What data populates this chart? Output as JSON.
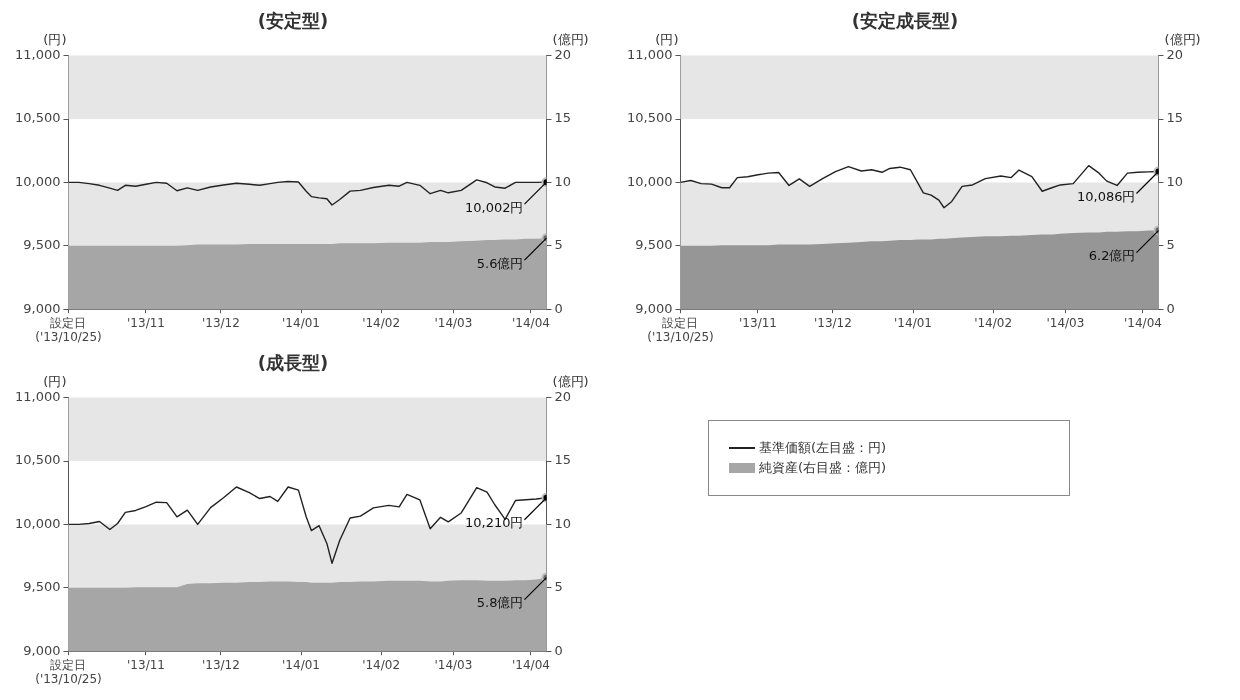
{
  "chart_data": [
    {
      "type": "line",
      "title": "(安定型)",
      "ylabel": "(円)",
      "y2label": "(億円)",
      "x": [
        "2013-10-25",
        "2013-10-29",
        "2013-11-02",
        "2013-11-06",
        "2013-11-10",
        "2013-11-13",
        "2013-11-16",
        "2013-11-20",
        "2013-11-24",
        "2013-11-28",
        "2013-12-02",
        "2013-12-06",
        "2013-12-10",
        "2013-12-14",
        "2013-12-19",
        "2013-12-24",
        "2013-12-29",
        "2014-01-03",
        "2014-01-07",
        "2014-01-11",
        "2014-01-14",
        "2014-01-18",
        "2014-01-22",
        "2014-01-25",
        "2014-01-27",
        "2014-01-30",
        "2014-02-02",
        "2014-02-04",
        "2014-02-07",
        "2014-02-11",
        "2014-02-15",
        "2014-02-20",
        "2014-02-26",
        "2014-03-02",
        "2014-03-05",
        "2014-03-10",
        "2014-03-14",
        "2014-03-18",
        "2014-03-21",
        "2014-03-26",
        "2014-04-01",
        "2014-04-05",
        "2014-04-08",
        "2014-04-12",
        "2014-04-16",
        "2014-04-20",
        "2014-04-24",
        "2014-04-28"
      ],
      "series": [
        {
          "type": "line",
          "color": "#222222",
          "values": [
            10000,
            10000,
            9990,
            9977,
            9955,
            9937,
            9977,
            9970,
            9985,
            10000,
            9993,
            9934,
            9957,
            9937,
            9964,
            9980,
            9993,
            9985,
            9977,
            9990,
            10000,
            10007,
            10003,
            9930,
            9888,
            9878,
            9871,
            9822,
            9865,
            9931,
            9937,
            9960,
            9977,
            9970,
            10000,
            9977,
            9911,
            9937,
            9918,
            9937,
            10020,
            9997,
            9964,
            9954,
            10000,
            10000,
            10000,
            10002
          ]
        },
        {
          "type": "area",
          "axis": "y2",
          "color": "#a6a6a6",
          "values": [
            5.0,
            5.0,
            5.0,
            5.0,
            5.0,
            5.0,
            5.0,
            5.0,
            5.0,
            5.0,
            5.0,
            5.0,
            5.05,
            5.1,
            5.1,
            5.1,
            5.1,
            5.15,
            5.15,
            5.15,
            5.15,
            5.15,
            5.15,
            5.15,
            5.15,
            5.15,
            5.15,
            5.15,
            5.2,
            5.2,
            5.2,
            5.2,
            5.25,
            5.25,
            5.25,
            5.25,
            5.3,
            5.3,
            5.3,
            5.35,
            5.4,
            5.45,
            5.45,
            5.5,
            5.5,
            5.55,
            5.55,
            5.6
          ]
        }
      ],
      "annotations": [
        {
          "text": "10,002円",
          "x": "2014-04-28",
          "y": 10002
        },
        {
          "text": "5.6億円",
          "x": "2014-04-28",
          "y": 9560
        }
      ],
      "bands": [
        {
          "axis": "y",
          "from": 10500,
          "to": 11000,
          "color": "#e6e6e6"
        },
        {
          "axis": "y",
          "from": 9000,
          "to": 10000,
          "color": "#e6e6e6"
        }
      ],
      "xlim": [
        "2013-10-25",
        "2014-04-28"
      ],
      "xticks": [
        {
          "value": "2013-10-25",
          "label": "設定日\n('13/10/25)"
        },
        {
          "value": "2013-11-24",
          "label": "'13/11"
        },
        {
          "value": "2013-12-23",
          "label": "'13/12"
        },
        {
          "value": "2014-01-23",
          "label": "'14/01"
        },
        {
          "value": "2014-02-23",
          "label": "'14/02"
        },
        {
          "value": "2014-03-23",
          "label": "'14/03"
        },
        {
          "value": "2014-04-22",
          "label": "'14/04"
        }
      ],
      "ylim": [
        9000,
        11000
      ],
      "yticks": [
        {
          "value": 9000,
          "label": "9,000"
        },
        {
          "value": 9500,
          "label": "9,500"
        },
        {
          "value": 10000,
          "label": "10,000"
        },
        {
          "value": 10500,
          "label": "10,500"
        },
        {
          "value": 11000,
          "label": "11,000"
        }
      ],
      "y2lim": [
        0,
        20
      ],
      "y2ticks": [
        0,
        5,
        10,
        15,
        20
      ],
      "grid": false,
      "legend": false
    },
    {
      "type": "line",
      "title": "(安定成長型)",
      "ylabel": "(円)",
      "y2label": "(億円)",
      "x": [
        "2013-10-25",
        "2013-10-29",
        "2013-11-02",
        "2013-11-06",
        "2013-11-10",
        "2013-11-13",
        "2013-11-16",
        "2013-11-20",
        "2013-11-24",
        "2013-11-28",
        "2013-12-02",
        "2013-12-06",
        "2013-12-10",
        "2013-12-14",
        "2013-12-19",
        "2013-12-24",
        "2013-12-29",
        "2014-01-03",
        "2014-01-07",
        "2014-01-11",
        "2014-01-14",
        "2014-01-18",
        "2014-01-22",
        "2014-01-25",
        "2014-01-27",
        "2014-01-30",
        "2014-02-02",
        "2014-02-04",
        "2014-02-07",
        "2014-02-11",
        "2014-02-15",
        "2014-02-20",
        "2014-02-26",
        "2014-03-02",
        "2014-03-05",
        "2014-03-10",
        "2014-03-14",
        "2014-03-18",
        "2014-03-21",
        "2014-03-26",
        "2014-04-01",
        "2014-04-05",
        "2014-04-08",
        "2014-04-12",
        "2014-04-16",
        "2014-04-20",
        "2014-04-24",
        "2014-04-28"
      ],
      "series": [
        {
          "type": "line",
          "color": "#222222",
          "values": [
            10000,
            10015,
            9990,
            9986,
            9958,
            9958,
            10038,
            10045,
            10060,
            10073,
            10078,
            9976,
            10028,
            9969,
            10030,
            10085,
            10125,
            10090,
            10100,
            10080,
            10110,
            10120,
            10100,
            9990,
            9917,
            9900,
            9860,
            9800,
            9850,
            9969,
            9980,
            10030,
            10050,
            10038,
            10097,
            10045,
            9930,
            9960,
            9980,
            9990,
            10132,
            10073,
            10010,
            9976,
            10073,
            10080,
            10083,
            10086
          ]
        },
        {
          "type": "area",
          "axis": "y2",
          "color": "#969696",
          "values": [
            5.0,
            5.0,
            5.0,
            5.0,
            5.05,
            5.05,
            5.05,
            5.05,
            5.05,
            5.05,
            5.1,
            5.1,
            5.1,
            5.1,
            5.15,
            5.2,
            5.25,
            5.3,
            5.35,
            5.35,
            5.4,
            5.45,
            5.45,
            5.5,
            5.5,
            5.5,
            5.55,
            5.55,
            5.6,
            5.65,
            5.7,
            5.75,
            5.75,
            5.8,
            5.8,
            5.85,
            5.9,
            5.9,
            5.95,
            6.0,
            6.05,
            6.05,
            6.1,
            6.1,
            6.15,
            6.15,
            6.2,
            6.2
          ]
        }
      ],
      "annotations": [
        {
          "text": "10,086円",
          "x": "2014-04-28",
          "y": 10086
        },
        {
          "text": "6.2億円",
          "x": "2014-04-28",
          "y": 9620
        }
      ],
      "bands": [
        {
          "axis": "y",
          "from": 10500,
          "to": 11000,
          "color": "#e6e6e6"
        },
        {
          "axis": "y",
          "from": 9000,
          "to": 10000,
          "color": "#e6e6e6"
        }
      ],
      "xlim": [
        "2013-10-25",
        "2014-04-28"
      ],
      "xticks": [
        {
          "value": "2013-10-25",
          "label": "設定日\n('13/10/25)"
        },
        {
          "value": "2013-11-24",
          "label": "'13/11"
        },
        {
          "value": "2013-12-23",
          "label": "'13/12"
        },
        {
          "value": "2014-01-23",
          "label": "'14/01"
        },
        {
          "value": "2014-02-23",
          "label": "'14/02"
        },
        {
          "value": "2014-03-23",
          "label": "'14/03"
        },
        {
          "value": "2014-04-22",
          "label": "'14/04"
        }
      ],
      "ylim": [
        9000,
        11000
      ],
      "yticks": [
        {
          "value": 9000,
          "label": "9,000"
        },
        {
          "value": 9500,
          "label": "9,500"
        },
        {
          "value": 10000,
          "label": "10,000"
        },
        {
          "value": 10500,
          "label": "10,500"
        },
        {
          "value": 11000,
          "label": "11,000"
        }
      ],
      "y2lim": [
        0,
        20
      ],
      "y2ticks": [
        0,
        5,
        10,
        15,
        20
      ],
      "grid": false,
      "legend": false
    },
    {
      "type": "line",
      "title": "(成長型)",
      "ylabel": "(円)",
      "y2label": "(億円)",
      "x": [
        "2013-10-25",
        "2013-10-29",
        "2013-11-02",
        "2013-11-06",
        "2013-11-10",
        "2013-11-13",
        "2013-11-16",
        "2013-11-20",
        "2013-11-24",
        "2013-11-28",
        "2013-12-02",
        "2013-12-06",
        "2013-12-10",
        "2013-12-14",
        "2013-12-19",
        "2013-12-24",
        "2013-12-29",
        "2014-01-03",
        "2014-01-07",
        "2014-01-11",
        "2014-01-14",
        "2014-01-18",
        "2014-01-22",
        "2014-01-25",
        "2014-01-27",
        "2014-01-30",
        "2014-02-02",
        "2014-02-04",
        "2014-02-07",
        "2014-02-11",
        "2014-02-15",
        "2014-02-20",
        "2014-02-26",
        "2014-03-02",
        "2014-03-05",
        "2014-03-10",
        "2014-03-14",
        "2014-03-18",
        "2014-03-21",
        "2014-03-26",
        "2014-04-01",
        "2014-04-05",
        "2014-04-08",
        "2014-04-12",
        "2014-04-16",
        "2014-04-20",
        "2014-04-24",
        "2014-04-28"
      ],
      "series": [
        {
          "type": "line",
          "name": "基準価額(左目盛：円)",
          "color": "#222222",
          "values": [
            10000,
            10000,
            10007,
            10023,
            9960,
            10007,
            10095,
            10110,
            10140,
            10175,
            10172,
            10060,
            10112,
            10000,
            10132,
            10210,
            10295,
            10250,
            10204,
            10220,
            10181,
            10295,
            10270,
            10060,
            9951,
            9990,
            9850,
            9694,
            9875,
            10050,
            10065,
            10130,
            10150,
            10138,
            10237,
            10194,
            9965,
            10056,
            10020,
            10090,
            10290,
            10254,
            10155,
            10040,
            10188,
            10194,
            10200,
            10210
          ]
        },
        {
          "type": "area",
          "name": "純資産(右目盛：億円)",
          "axis": "y2",
          "color": "#a6a6a6",
          "values": [
            5.0,
            5.0,
            5.0,
            5.0,
            5.0,
            5.0,
            5.0,
            5.05,
            5.05,
            5.05,
            5.05,
            5.05,
            5.3,
            5.35,
            5.35,
            5.4,
            5.4,
            5.45,
            5.45,
            5.5,
            5.5,
            5.5,
            5.45,
            5.45,
            5.4,
            5.4,
            5.4,
            5.4,
            5.45,
            5.45,
            5.5,
            5.5,
            5.55,
            5.55,
            5.55,
            5.55,
            5.5,
            5.5,
            5.55,
            5.6,
            5.6,
            5.55,
            5.55,
            5.55,
            5.6,
            5.6,
            5.65,
            5.8
          ]
        }
      ],
      "annotations": [
        {
          "text": "10,210円",
          "x": "2014-04-28",
          "y": 10210
        },
        {
          "text": "5.8億円",
          "x": "2014-04-28",
          "y": 9580
        }
      ],
      "bands": [
        {
          "axis": "y",
          "from": 10500,
          "to": 11000,
          "color": "#e6e6e6"
        },
        {
          "axis": "y",
          "from": 9000,
          "to": 10000,
          "color": "#e6e6e6"
        }
      ],
      "xlim": [
        "2013-10-25",
        "2014-04-28"
      ],
      "xticks": [
        {
          "value": "2013-10-25",
          "label": "設定日\n('13/10/25)"
        },
        {
          "value": "2013-11-24",
          "label": "'13/11"
        },
        {
          "value": "2013-12-23",
          "label": "'13/12"
        },
        {
          "value": "2014-01-23",
          "label": "'14/01"
        },
        {
          "value": "2014-02-23",
          "label": "'14/02"
        },
        {
          "value": "2014-03-23",
          "label": "'14/03"
        },
        {
          "value": "2014-04-22",
          "label": "'14/04"
        }
      ],
      "ylim": [
        9000,
        11000
      ],
      "yticks": [
        {
          "value": 9000,
          "label": "9,000"
        },
        {
          "value": 9500,
          "label": "9,500"
        },
        {
          "value": 10000,
          "label": "10,000"
        },
        {
          "value": 10500,
          "label": "10,500"
        },
        {
          "value": 11000,
          "label": "11,000"
        }
      ],
      "y2lim": [
        0,
        20
      ],
      "y2ticks": [
        0,
        5,
        10,
        15,
        20
      ],
      "grid": false,
      "legend": "right"
    }
  ]
}
